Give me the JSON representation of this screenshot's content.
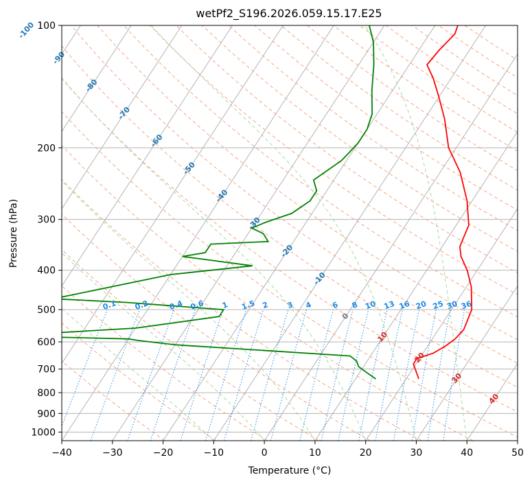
{
  "chart_data": {
    "type": "line",
    "title": "wetPf2_S196.2026.059.15.17.E25",
    "xlabel": "Temperature (°C)",
    "ylabel": "Pressure (hPa)",
    "xlim": [
      -40,
      50
    ],
    "ylim": [
      1050,
      100
    ],
    "x_ticks": [
      -40,
      -30,
      -20,
      -10,
      0,
      10,
      20,
      30,
      40,
      50
    ],
    "x_tick_labels": [
      "−40",
      "−30",
      "−20",
      "−10",
      "0",
      "10",
      "20",
      "30",
      "40",
      "50"
    ],
    "y_ticks": [
      1000,
      900,
      800,
      700,
      600,
      500,
      400,
      300,
      200,
      100
    ],
    "y_tick_labels": [
      "1000",
      "900",
      "800",
      "700",
      "600",
      "500",
      "400",
      "300",
      "200",
      "100"
    ],
    "series": [
      {
        "name": "Temperature",
        "color": "#ff0000",
        "points": [
          [
            22.5,
            740
          ],
          [
            19.5,
            680
          ],
          [
            19.5,
            660
          ],
          [
            22.0,
            640
          ],
          [
            23.5,
            615
          ],
          [
            24.5,
            590
          ],
          [
            25.0,
            560
          ],
          [
            24.0,
            500
          ],
          [
            21.0,
            440
          ],
          [
            18.0,
            400
          ],
          [
            15.0,
            370
          ],
          [
            13.5,
            350
          ],
          [
            13.0,
            330
          ],
          [
            12.5,
            310
          ],
          [
            9.0,
            270
          ],
          [
            4.0,
            230
          ],
          [
            -1.5,
            200
          ],
          [
            -6.0,
            170
          ],
          [
            -10.0,
            150
          ],
          [
            -13.5,
            135
          ],
          [
            -16.5,
            125
          ],
          [
            -16.0,
            115
          ],
          [
            -15.0,
            105
          ],
          [
            -15.5,
            100
          ]
        ]
      },
      {
        "name": "Dewpoint",
        "color": "#008000",
        "points": [
          [
            14.0,
            740
          ],
          [
            11.0,
            710
          ],
          [
            9.0,
            690
          ],
          [
            8.0,
            670
          ],
          [
            6.0,
            650
          ],
          [
            -30.0,
            610
          ],
          [
            -38.0,
            595
          ],
          [
            -40.0,
            590
          ],
          [
            -65.0,
            580
          ],
          [
            -40.0,
            555
          ],
          [
            -25.0,
            520
          ],
          [
            -25.0,
            500
          ],
          [
            -45.0,
            480
          ],
          [
            -60.0,
            470
          ],
          [
            -40.0,
            410
          ],
          [
            -25.0,
            390
          ],
          [
            -40.0,
            370
          ],
          [
            -36.0,
            362
          ],
          [
            -36.0,
            345
          ],
          [
            -25.0,
            340
          ],
          [
            -27.0,
            325
          ],
          [
            -30.0,
            315
          ],
          [
            -28.0,
            305
          ],
          [
            -24.0,
            290
          ],
          [
            -22.0,
            270
          ],
          [
            -22.0,
            255
          ],
          [
            -24.0,
            240
          ],
          [
            -21.0,
            215
          ],
          [
            -20.0,
            195
          ],
          [
            -20.0,
            180
          ],
          [
            -21.0,
            165
          ],
          [
            -24.0,
            145
          ],
          [
            -27.0,
            125
          ],
          [
            -30.0,
            110
          ],
          [
            -33.0,
            100
          ]
        ]
      }
    ],
    "reference_lines": {
      "isotherm_step": 10,
      "dry_adiabat_theta_K": [
        250,
        260,
        270,
        280,
        290,
        300,
        310,
        320,
        330,
        340,
        350,
        360,
        370,
        380,
        390,
        400,
        410,
        420,
        430,
        440,
        450,
        460,
        470,
        480,
        490,
        500
      ],
      "moist_adiabat_start_C": [
        -10,
        0,
        10,
        20,
        30,
        40
      ],
      "mixing_ratio_g_per_kg": [
        0.1,
        0.2,
        0.4,
        0.6,
        1,
        1.5,
        2,
        3,
        4,
        6,
        8,
        10,
        13,
        16,
        20,
        25,
        30,
        36
      ]
    },
    "isotherm_tags": [
      {
        "label": "-100",
        "value": -100
      },
      {
        "label": "-90",
        "value": -90
      },
      {
        "label": "-80",
        "value": -80
      },
      {
        "label": "-70",
        "value": -70
      },
      {
        "label": "-60",
        "value": -60
      },
      {
        "label": "-50",
        "value": -50
      },
      {
        "label": "-40",
        "value": -40
      },
      {
        "label": "-30",
        "value": -30
      },
      {
        "label": "-20",
        "value": -20
      },
      {
        "label": "-10",
        "value": -10
      },
      {
        "label": "0",
        "value": 0
      },
      {
        "label": "10",
        "value": 10
      },
      {
        "label": "20",
        "value": 20
      },
      {
        "label": "30",
        "value": 30
      },
      {
        "label": "40",
        "value": 40
      }
    ],
    "mixing_ratio_tags": [
      "0.1",
      "0.2",
      "0.4",
      "0.6",
      "1",
      "1.5",
      "2",
      "3",
      "4",
      "6",
      "8",
      "10",
      "13",
      "16",
      "20",
      "25",
      "30",
      "36"
    ],
    "colors": {
      "isotherm": "#aaaaaa",
      "dry_adiabat": "#f4a582",
      "moist_adiabat": "#a6d8a0",
      "mixing_ratio": "#1e88e5",
      "cold_tag": "#1f77b4",
      "warm_tag": "#d62728",
      "neutral_tag": "#777777"
    }
  }
}
